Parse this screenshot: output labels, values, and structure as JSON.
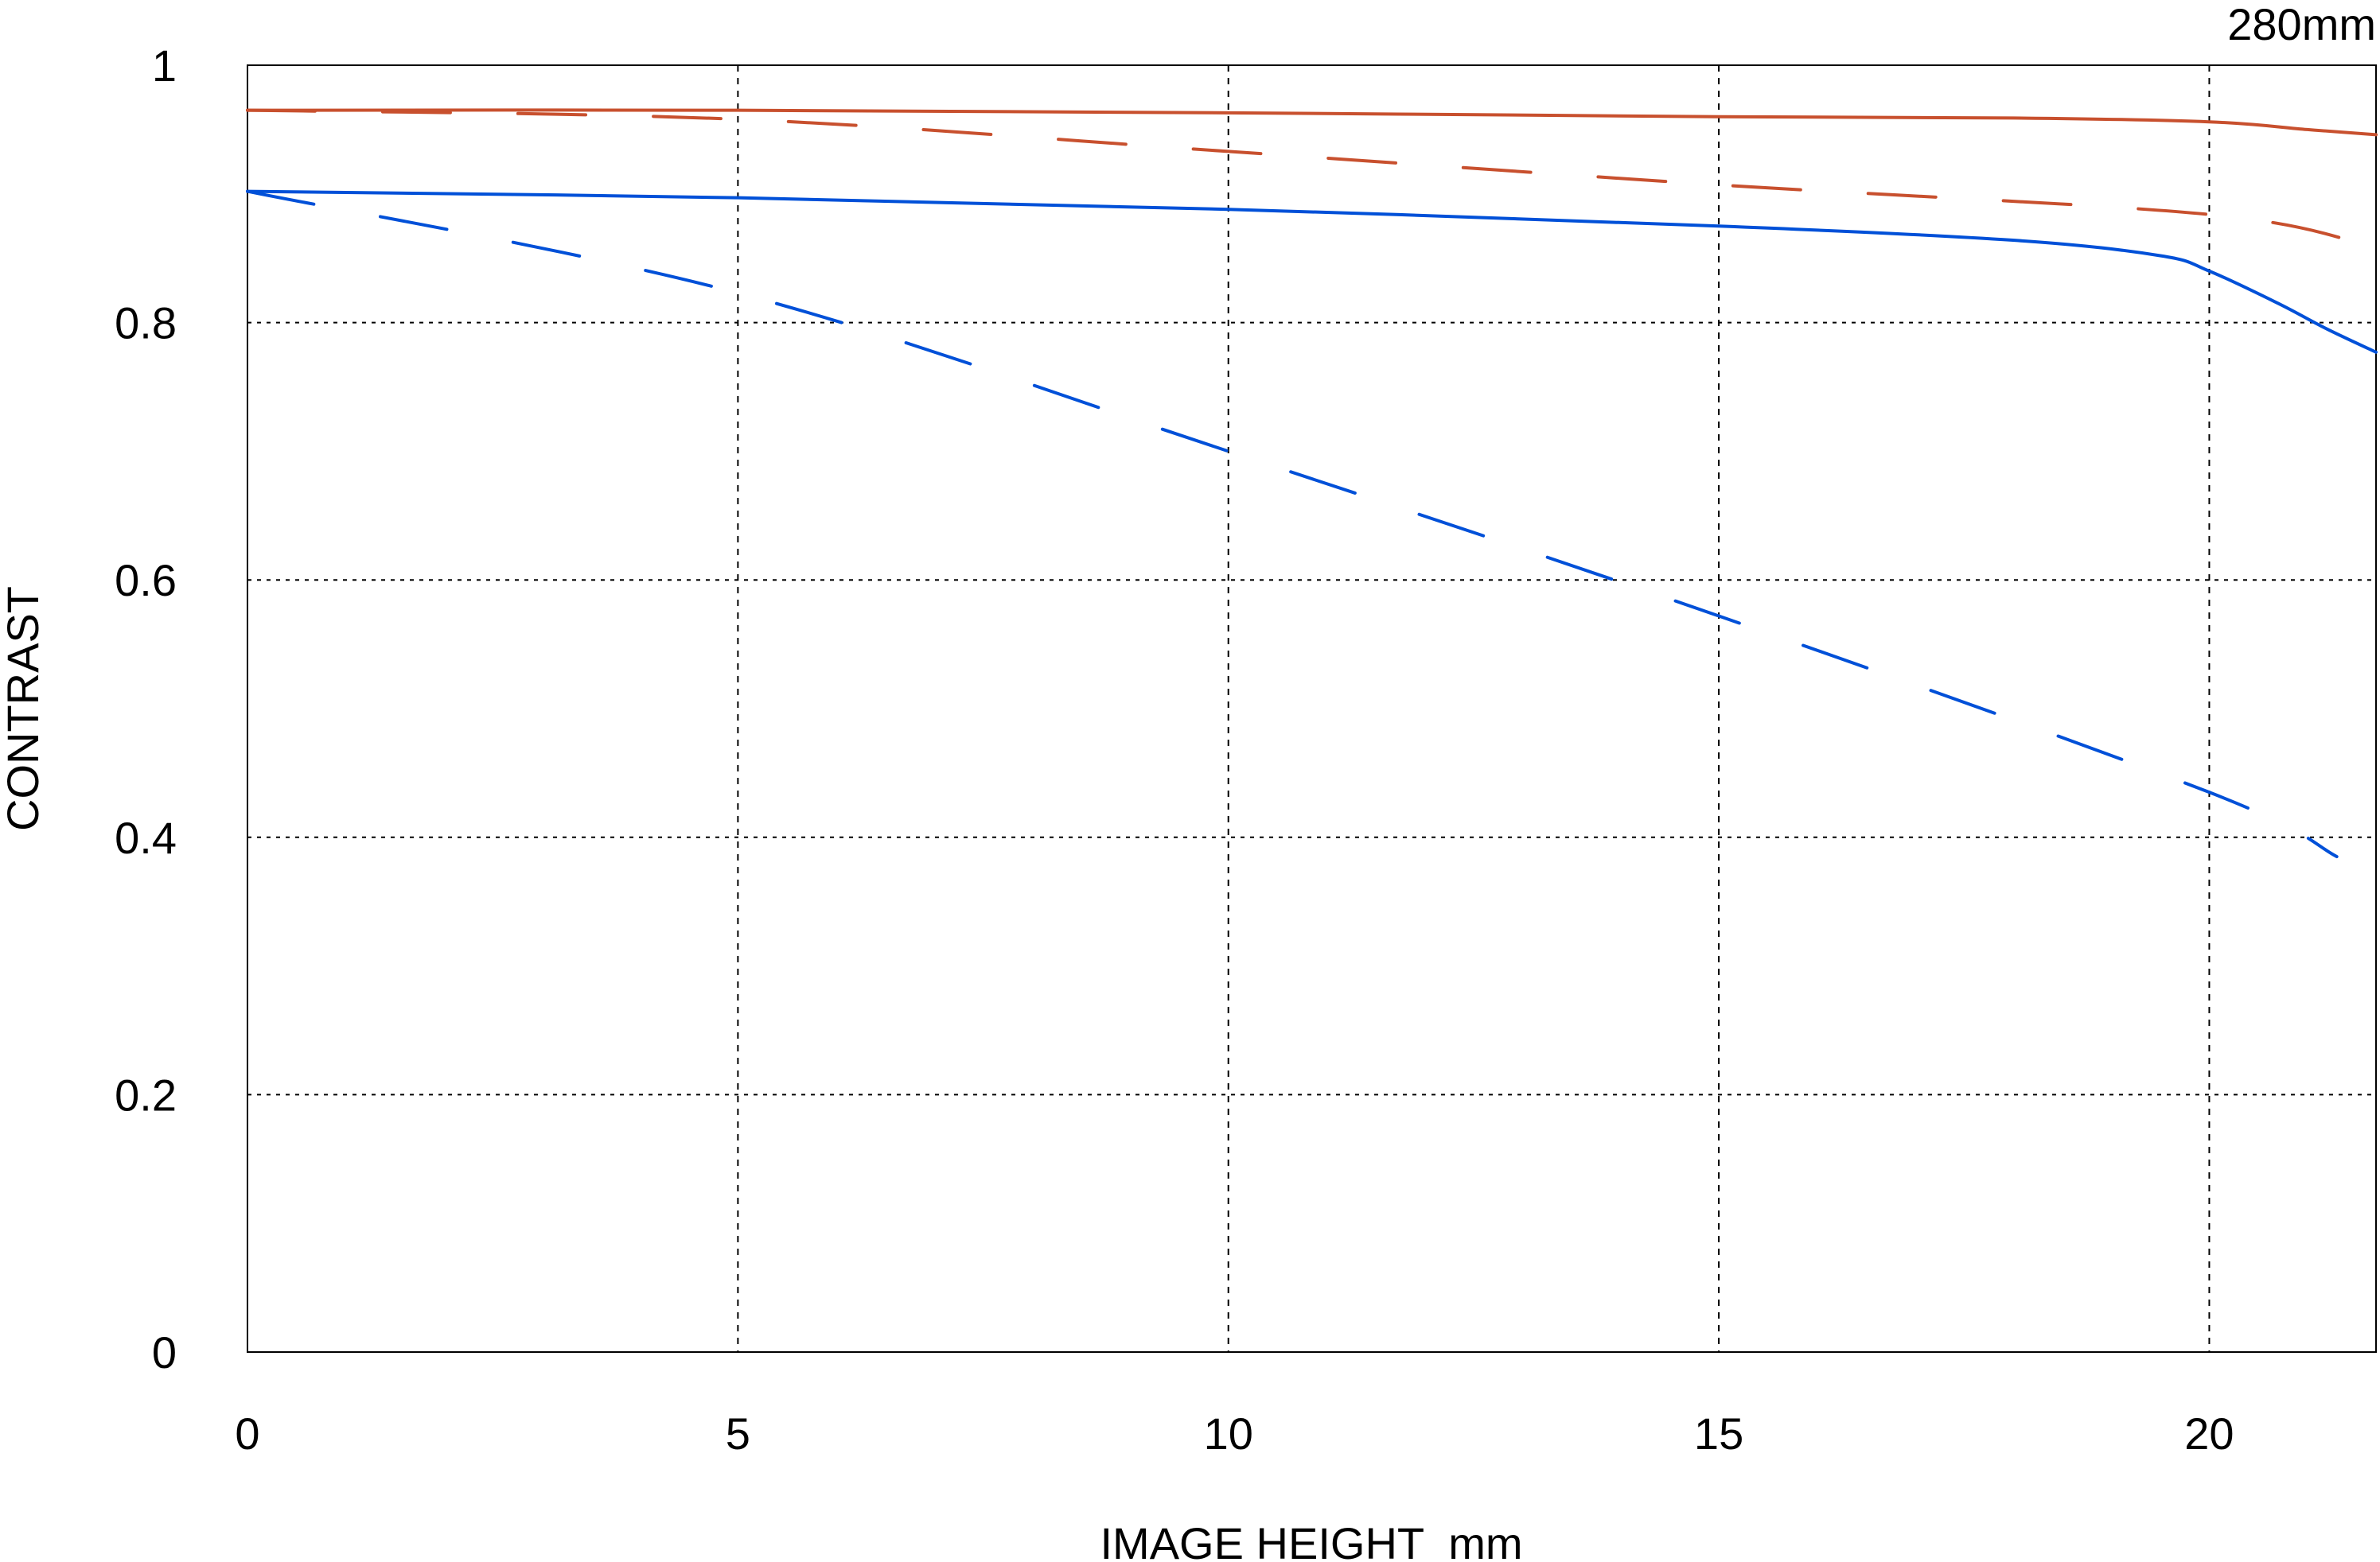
{
  "chart_data": {
    "type": "line",
    "title": "280mm",
    "xlabel": "IMAGE HEIGHT  mm",
    "ylabel": "CONTRAST",
    "xlim": [
      0,
      21.7
    ],
    "ylim": [
      0,
      1
    ],
    "xticks": [
      0,
      5,
      10,
      15,
      20
    ],
    "xtick_labels": [
      "0",
      "5",
      "10",
      "15",
      "20"
    ],
    "yticks": [
      0,
      0.2,
      0.4,
      0.6,
      0.8,
      1
    ],
    "ytick_labels": [
      "0",
      "0.2",
      "0.4",
      "0.6",
      "0.8",
      "1"
    ],
    "grid": true,
    "series": [
      {
        "name": "red-sagittal",
        "color": "#c8502e",
        "dash": "solid",
        "x": [
          0,
          5,
          10,
          15,
          18,
          20,
          21,
          21.7
        ],
        "y": [
          0.965,
          0.965,
          0.963,
          0.96,
          0.959,
          0.956,
          0.95,
          0.946
        ]
      },
      {
        "name": "red-meridional",
        "color": "#c8502e",
        "dash": "dashed",
        "x": [
          0,
          5,
          10,
          15,
          20,
          21.7
        ],
        "y": [
          0.965,
          0.958,
          0.933,
          0.907,
          0.884,
          0.858
        ]
      },
      {
        "name": "blue-sagittal",
        "color": "#0050d8",
        "dash": "solid",
        "x": [
          0,
          5,
          10,
          15,
          18,
          19.5,
          20,
          20.7,
          21.2,
          21.7
        ],
        "y": [
          0.902,
          0.897,
          0.888,
          0.875,
          0.864,
          0.852,
          0.84,
          0.815,
          0.795,
          0.777
        ]
      },
      {
        "name": "blue-meridional",
        "color": "#0050d8",
        "dash": "dashed",
        "x": [
          0,
          5,
          10,
          15,
          20,
          21.3
        ],
        "y": [
          0.902,
          0.823,
          0.7,
          0.572,
          0.435,
          0.385
        ]
      }
    ]
  }
}
